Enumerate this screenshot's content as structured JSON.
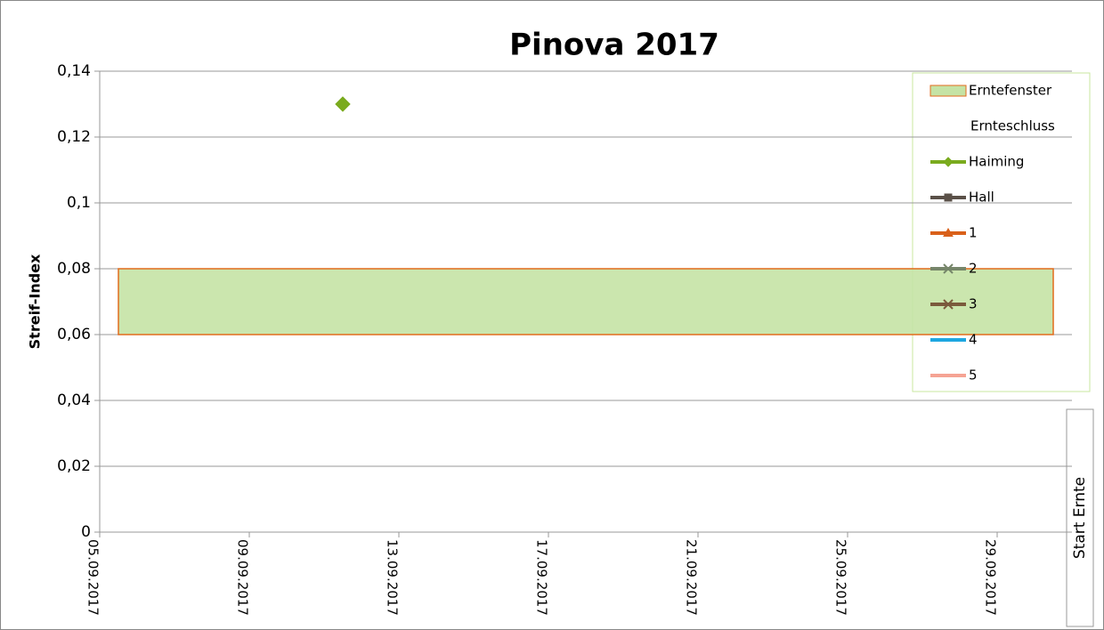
{
  "chart_data": {
    "type": "line",
    "title": "Pinova 2017",
    "y_label": "Streif-Index",
    "xlim": [
      "05.09.2017",
      "30.09.2017"
    ],
    "xticks": [
      "05.09.2017",
      "09.09.2017",
      "13.09.2017",
      "17.09.2017",
      "21.09.2017",
      "25.09.2017",
      "29.09.2017"
    ],
    "ylim": [
      0,
      0.14
    ],
    "yticks": [
      0,
      {
        "value": 0.02,
        "label": "0,02"
      },
      {
        "value": 0.04,
        "label": "0,04"
      },
      {
        "value": 0.06,
        "label": "0,06"
      },
      {
        "value": 0.08,
        "label": "0,08"
      },
      {
        "value": 0.1,
        "label": "0,1"
      },
      {
        "value": 0.12,
        "label": "0,12"
      },
      {
        "value": 0.14,
        "label": "0,14"
      }
    ],
    "grid": true,
    "legend": "right",
    "series": [
      {
        "name": "Erntefenster",
        "type": "band",
        "color": "#c5e3a5",
        "edge_color": "#e26b1c",
        "x": [
          "05.09.2017",
          "30.09.2017"
        ],
        "low": [
          0.06,
          0.06
        ],
        "values": [
          0.08,
          0.08
        ]
      },
      {
        "name": "Ernteschluss",
        "x": [],
        "values": []
      },
      {
        "name": "Haiming",
        "color": "#7aab1e",
        "marker": "diamond",
        "x": [
          "11.09.2017"
        ],
        "values": [
          0.13
        ]
      },
      {
        "name": "Hall",
        "color": "#5a5048",
        "marker": "square",
        "x": [],
        "values": []
      },
      {
        "name": "1",
        "color": "#d9601a",
        "marker": "triangle",
        "x": [],
        "values": []
      },
      {
        "name": "2",
        "color": "#76866a",
        "marker": "x",
        "x": [],
        "values": []
      },
      {
        "name": "3",
        "color": "#7a5a3c",
        "marker": "star",
        "x": [],
        "values": []
      },
      {
        "name": "4",
        "color": "#1ea7e1",
        "x": [],
        "values": []
      },
      {
        "name": "5",
        "color": "#f5a393",
        "x": [],
        "values": []
      }
    ],
    "annotation": "Start Ernte"
  }
}
